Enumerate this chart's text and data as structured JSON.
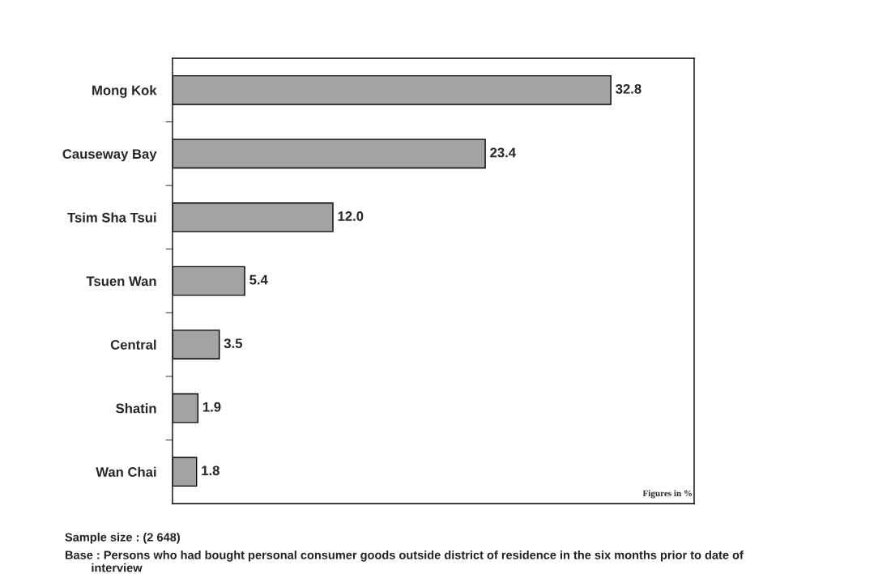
{
  "chart_data": {
    "type": "bar",
    "orientation": "horizontal",
    "categories": [
      "Mong Kok",
      "Causeway Bay",
      "Tsim Sha Tsui",
      "Tsuen Wan",
      "Central",
      "Shatin",
      "Wan Chai"
    ],
    "values": [
      32.8,
      23.4,
      12.0,
      5.4,
      3.5,
      1.9,
      1.8
    ],
    "value_labels": [
      "32.8",
      "23.4",
      "12.0",
      "5.4",
      "3.5",
      "1.9",
      "1.8"
    ],
    "color": "#a3a3a3",
    "tick_labels": "y",
    "grid": false,
    "annotations": [
      "Figures in %",
      "Sample size : (2 648)",
      "Base : Persons who had bought personal consumer goods outside district of residence in the six months prior to date of\n        interview"
    ]
  }
}
